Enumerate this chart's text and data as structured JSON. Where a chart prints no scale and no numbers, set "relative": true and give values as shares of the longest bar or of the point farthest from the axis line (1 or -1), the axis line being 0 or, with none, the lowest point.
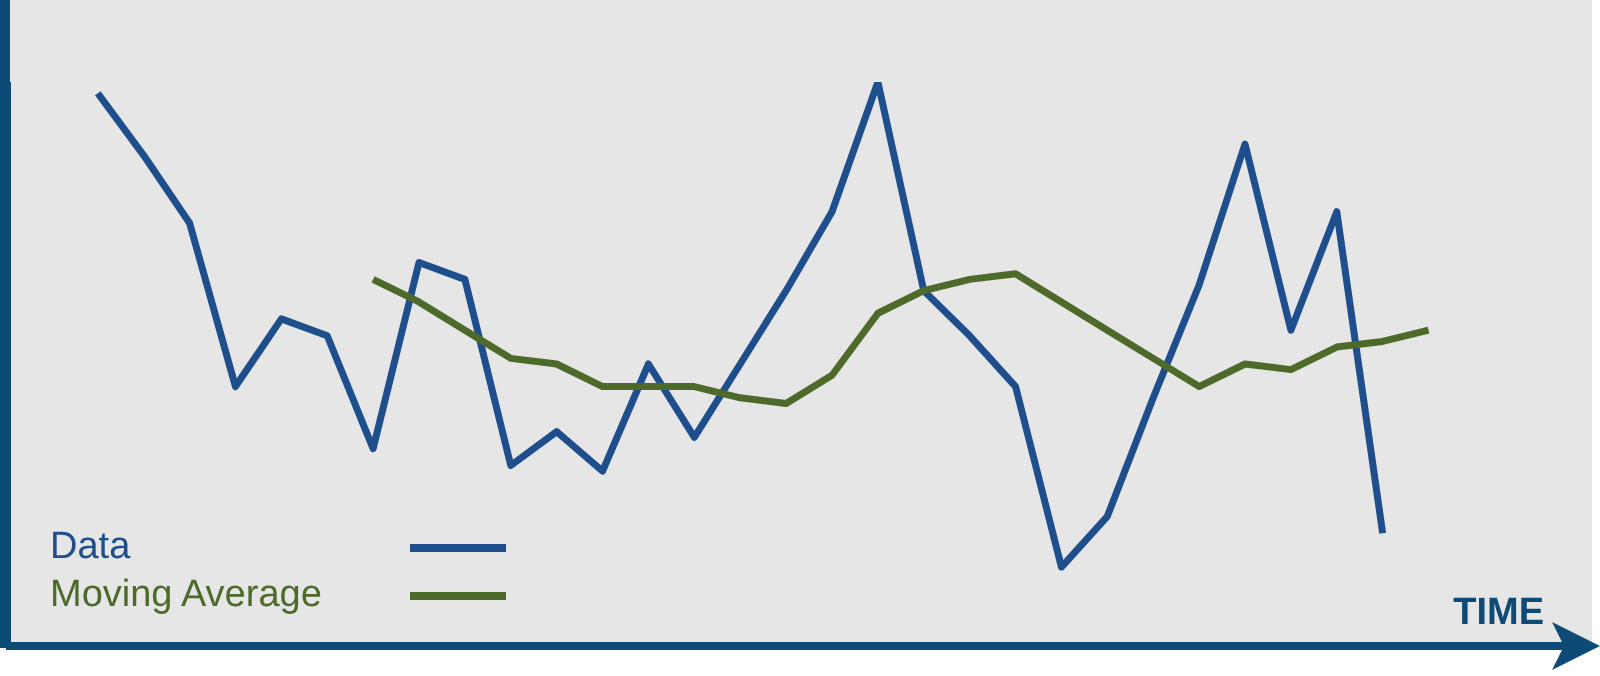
{
  "chart_data": {
    "type": "line",
    "relative": true,
    "xlabel": "TIME",
    "categories": [
      null,
      null,
      null,
      null,
      null,
      null,
      null,
      null,
      null,
      null,
      null,
      null,
      null,
      null,
      null,
      null,
      null,
      null,
      null,
      null,
      null,
      null,
      null,
      null,
      null,
      null,
      null,
      null,
      null,
      null
    ],
    "series": [
      {
        "name": "Data",
        "color": "#1f4e8c",
        "values": [
          0.98,
          0.87,
          0.75,
          0.46,
          0.58,
          0.55,
          0.35,
          0.68,
          0.65,
          0.32,
          0.38,
          0.31,
          0.5,
          0.37,
          0.5,
          0.63,
          0.77,
          1,
          0.63,
          0.55,
          0.46,
          0.14,
          0.23,
          0.44,
          0.64,
          0.89,
          0.56,
          0.77,
          0.2,
          null
        ]
      },
      {
        "name": "Moving Average",
        "color": "#4e6a2a",
        "values": [
          null,
          null,
          null,
          null,
          null,
          null,
          0.65,
          0.61,
          0.56,
          0.51,
          0.5,
          0.46,
          0.46,
          0.46,
          0.44,
          0.43,
          0.48,
          0.59,
          0.63,
          0.65,
          0.66,
          0.61,
          0.56,
          0.51,
          0.46,
          0.5,
          0.49,
          0.53,
          0.54,
          0.56
        ]
      }
    ],
    "legend": "bottom left",
    "grid": false,
    "marker": "none",
    "line_style": "solid",
    "tick_labels": false
  }
}
